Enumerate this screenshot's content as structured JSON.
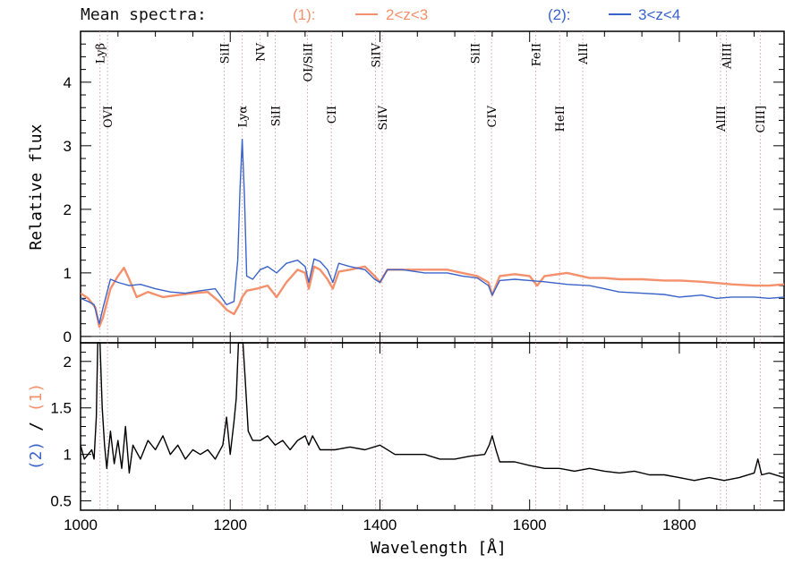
{
  "chart_data": {
    "type": "line",
    "title": "Mean spectra:",
    "xlabel": "Wavelength [Å]",
    "xlim": [
      1000,
      1940
    ],
    "xticks": [
      1000,
      1200,
      1400,
      1600,
      1800
    ],
    "legend": {
      "placement": "top",
      "entries": [
        {
          "tag": "(1):",
          "range": "2<z<3",
          "color": "#f4906c"
        },
        {
          "tag": "(2):",
          "range": "3<z<4",
          "color": "#3a63c9"
        }
      ]
    },
    "lines": [
      {
        "label": "OVI",
        "x": 1036,
        "row": "low"
      },
      {
        "label": "Lyβ",
        "x": 1026,
        "row": "high"
      },
      {
        "label": "SiII",
        "x": 1192,
        "row": "high"
      },
      {
        "label": "Lyα",
        "x": 1216,
        "row": "low"
      },
      {
        "label": "NV",
        "x": 1240,
        "row": "high"
      },
      {
        "label": "SiII",
        "x": 1260,
        "row": "low"
      },
      {
        "label": "OI/SiII",
        "x": 1303,
        "row": "high"
      },
      {
        "label": "CII",
        "x": 1335,
        "row": "low"
      },
      {
        "label": "SiIV",
        "x": 1394,
        "row": "high"
      },
      {
        "label": "SiIV",
        "x": 1403,
        "row": "low"
      },
      {
        "label": "SiII",
        "x": 1527,
        "row": "high"
      },
      {
        "label": "CIV",
        "x": 1549,
        "row": "low"
      },
      {
        "label": "FeII",
        "x": 1608,
        "row": "high"
      },
      {
        "label": "HeII",
        "x": 1640,
        "row": "low"
      },
      {
        "label": "AlII",
        "x": 1671,
        "row": "high"
      },
      {
        "label": "AlIII",
        "x": 1855,
        "row": "low"
      },
      {
        "label": "AlIII",
        "x": 1863,
        "row": "high"
      },
      {
        "label": "CIII]",
        "x": 1908,
        "row": "low"
      }
    ],
    "panels": [
      {
        "ylabel": "Relative flux",
        "ylim": [
          -0.1,
          4.8
        ],
        "yticks": [
          0,
          1,
          2,
          3,
          4
        ],
        "series": [
          {
            "key": "1",
            "color": "#f4906c",
            "x": [
              1000,
              1010,
              1020,
              1025,
              1030,
              1040,
              1050,
              1058,
              1065,
              1075,
              1090,
              1110,
              1130,
              1150,
              1170,
              1185,
              1195,
              1205,
              1212,
              1216,
              1222,
              1235,
              1250,
              1262,
              1275,
              1290,
              1300,
              1305,
              1312,
              1320,
              1330,
              1337,
              1345,
              1360,
              1380,
              1393,
              1400,
              1410,
              1430,
              1460,
              1490,
              1510,
              1530,
              1545,
              1550,
              1560,
              1580,
              1600,
              1610,
              1620,
              1650,
              1680,
              1700,
              1720,
              1750,
              1780,
              1800,
              1830,
              1850,
              1870,
              1900,
              1920,
              1940
            ],
            "y": [
              0.68,
              0.6,
              0.45,
              0.15,
              0.3,
              0.75,
              0.95,
              1.08,
              0.9,
              0.62,
              0.7,
              0.62,
              0.65,
              0.68,
              0.7,
              0.55,
              0.42,
              0.35,
              0.5,
              0.62,
              0.72,
              0.75,
              0.8,
              0.62,
              0.85,
              1.05,
              1.0,
              0.75,
              1.1,
              1.05,
              0.9,
              0.75,
              1.02,
              1.05,
              1.1,
              0.95,
              0.85,
              1.05,
              1.05,
              1.05,
              1.05,
              1.0,
              0.95,
              0.85,
              0.65,
              0.95,
              0.98,
              0.95,
              0.8,
              0.95,
              1.0,
              0.92,
              0.92,
              0.9,
              0.9,
              0.88,
              0.88,
              0.86,
              0.84,
              0.82,
              0.8,
              0.8,
              0.82
            ]
          },
          {
            "key": "2",
            "color": "#3a63c9",
            "x": [
              1000,
              1010,
              1018,
              1025,
              1030,
              1040,
              1050,
              1065,
              1080,
              1100,
              1120,
              1140,
              1160,
              1180,
              1195,
              1205,
              1210,
              1213,
              1216,
              1219,
              1222,
              1230,
              1240,
              1250,
              1262,
              1275,
              1290,
              1300,
              1305,
              1312,
              1320,
              1330,
              1337,
              1345,
              1360,
              1380,
              1393,
              1400,
              1410,
              1430,
              1460,
              1490,
              1510,
              1530,
              1545,
              1550,
              1560,
              1580,
              1600,
              1620,
              1650,
              1680,
              1700,
              1720,
              1750,
              1780,
              1800,
              1830,
              1850,
              1870,
              1900,
              1920,
              1940
            ],
            "y": [
              0.6,
              0.55,
              0.5,
              0.2,
              0.45,
              0.9,
              0.85,
              0.8,
              0.82,
              0.75,
              0.7,
              0.68,
              0.72,
              0.75,
              0.5,
              0.55,
              1.2,
              2.3,
              3.1,
              2.2,
              0.95,
              0.9,
              1.05,
              1.1,
              1.0,
              1.15,
              1.2,
              1.1,
              0.85,
              1.22,
              1.18,
              1.05,
              0.85,
              1.15,
              1.1,
              1.05,
              0.9,
              0.85,
              1.05,
              1.05,
              1.0,
              1.0,
              0.95,
              0.92,
              0.8,
              0.65,
              0.88,
              0.9,
              0.88,
              0.86,
              0.82,
              0.8,
              0.75,
              0.7,
              0.68,
              0.66,
              0.62,
              0.65,
              0.6,
              0.62,
              0.62,
              0.6,
              0.62
            ]
          }
        ]
      },
      {
        "ylabel": [
          {
            "text": "(2)",
            "color": "#3a63c9"
          },
          {
            "text": "/",
            "color": "#000000"
          },
          {
            "text": "(1)",
            "color": "#f4906c"
          }
        ],
        "ylim": [
          0.4,
          2.2
        ],
        "yticks": [
          0.5,
          1,
          1.5,
          2
        ],
        "series": [
          {
            "key": "2/1",
            "color": "#000000",
            "x": [
              1000,
              1005,
              1010,
              1015,
              1018,
              1021,
              1023,
              1026,
              1029,
              1032,
              1035,
              1040,
              1045,
              1050,
              1055,
              1060,
              1065,
              1070,
              1080,
              1090,
              1100,
              1110,
              1120,
              1130,
              1140,
              1150,
              1160,
              1170,
              1180,
              1190,
              1195,
              1200,
              1205,
              1208,
              1211,
              1214,
              1217,
              1220,
              1224,
              1230,
              1240,
              1250,
              1260,
              1270,
              1280,
              1290,
              1300,
              1305,
              1310,
              1320,
              1340,
              1360,
              1380,
              1400,
              1420,
              1440,
              1460,
              1480,
              1500,
              1520,
              1540,
              1546,
              1550,
              1555,
              1560,
              1580,
              1600,
              1620,
              1640,
              1660,
              1680,
              1700,
              1720,
              1740,
              1760,
              1780,
              1800,
              1820,
              1840,
              1860,
              1880,
              1900,
              1905,
              1910,
              1920,
              1940
            ],
            "y": [
              1.1,
              0.95,
              1.0,
              1.05,
              0.95,
              1.4,
              2.2,
              2.2,
              1.5,
              1.1,
              0.85,
              1.25,
              0.9,
              1.15,
              0.85,
              1.3,
              0.8,
              1.1,
              0.95,
              1.15,
              1.05,
              1.2,
              1.0,
              1.1,
              0.95,
              1.05,
              1.0,
              1.05,
              0.95,
              1.1,
              1.4,
              1.0,
              1.35,
              1.6,
              2.2,
              2.2,
              2.2,
              1.8,
              1.25,
              1.15,
              1.15,
              1.2,
              1.1,
              1.15,
              1.05,
              1.15,
              1.2,
              1.1,
              1.2,
              1.05,
              1.05,
              1.08,
              1.05,
              1.1,
              1.0,
              1.0,
              1.0,
              0.95,
              0.95,
              0.98,
              1.0,
              1.1,
              1.2,
              1.05,
              0.92,
              0.92,
              0.88,
              0.85,
              0.85,
              0.82,
              0.85,
              0.82,
              0.8,
              0.82,
              0.78,
              0.78,
              0.75,
              0.72,
              0.75,
              0.72,
              0.75,
              0.8,
              0.95,
              0.78,
              0.8,
              0.75
            ]
          }
        ]
      }
    ]
  }
}
